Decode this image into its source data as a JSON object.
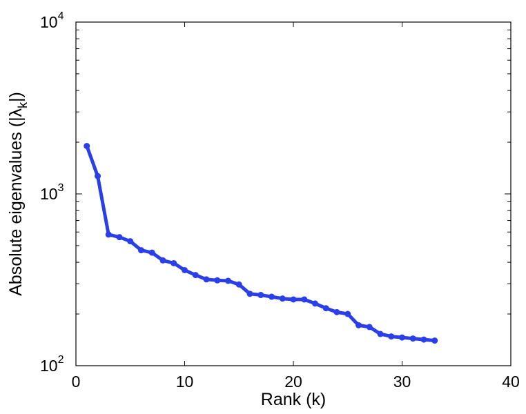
{
  "chart_data": {
    "type": "line",
    "xlabel": "Rank (k)",
    "ylabel_main": "Absolute eigenvalues (|λ",
    "ylabel_sub": "k",
    "ylabel_end": "|)",
    "xlim": [
      0,
      40
    ],
    "ylim": [
      100,
      10000
    ],
    "yscale": "log",
    "grid": false,
    "legend": "none",
    "line_color": "#2b3fe8",
    "x_ticks": [
      0,
      10,
      20,
      30,
      40
    ],
    "x_tick_labels": [
      "0",
      "10",
      "20",
      "30",
      "40"
    ],
    "y_ticks": [
      100,
      1000,
      10000
    ],
    "y_tick_labels": [
      {
        "base": "10",
        "exp": "2"
      },
      {
        "base": "10",
        "exp": "3"
      },
      {
        "base": "10",
        "exp": "4"
      }
    ],
    "series": [
      {
        "x": [
          1,
          2,
          3,
          4,
          5,
          6,
          7,
          8,
          9,
          10,
          11,
          12,
          13,
          14,
          15,
          16,
          17,
          18,
          19,
          20,
          21,
          22,
          23,
          24,
          25,
          26,
          27,
          28,
          29,
          30,
          31,
          32,
          33
        ],
        "y": [
          1900,
          1270,
          580,
          560,
          530,
          470,
          455,
          410,
          395,
          360,
          337,
          318,
          314,
          312,
          297,
          262,
          258,
          252,
          246,
          243,
          243,
          230,
          216,
          205,
          200,
          172,
          168,
          153,
          148,
          146,
          144,
          142,
          140
        ]
      }
    ]
  }
}
